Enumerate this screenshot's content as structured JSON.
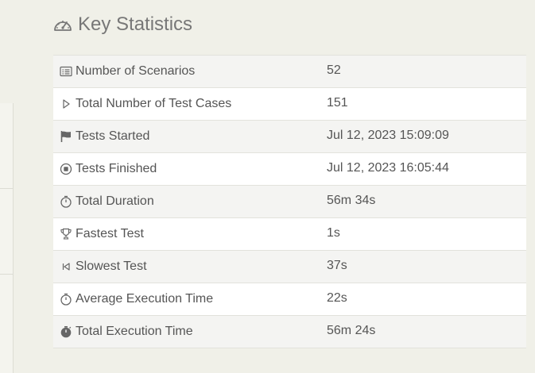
{
  "heading": {
    "icon": "dashboard-gauge-icon",
    "title": "Key Statistics"
  },
  "stats": [
    {
      "icon": "list-card-icon",
      "label": "Number of Scenarios",
      "value": "52"
    },
    {
      "icon": "play-outline-icon",
      "label": "Total Number of Test Cases",
      "value": "151"
    },
    {
      "icon": "flag-icon",
      "label": "Tests Started",
      "value": "Jul 12, 2023 15:09:09"
    },
    {
      "icon": "stop-circle-icon",
      "label": "Tests Finished",
      "value": "Jul 12, 2023 16:05:44"
    },
    {
      "icon": "stopwatch-icon",
      "label": "Total Duration",
      "value": "56m 34s"
    },
    {
      "icon": "trophy-icon",
      "label": "Fastest Test",
      "value": "1s"
    },
    {
      "icon": "skip-back-icon",
      "label": "Slowest Test",
      "value": "37s"
    },
    {
      "icon": "stopwatch-icon",
      "label": "Average Execution Time",
      "value": "22s"
    },
    {
      "icon": "stopwatch-filled-icon",
      "label": "Total Execution Time",
      "value": "56m 24s"
    }
  ]
}
